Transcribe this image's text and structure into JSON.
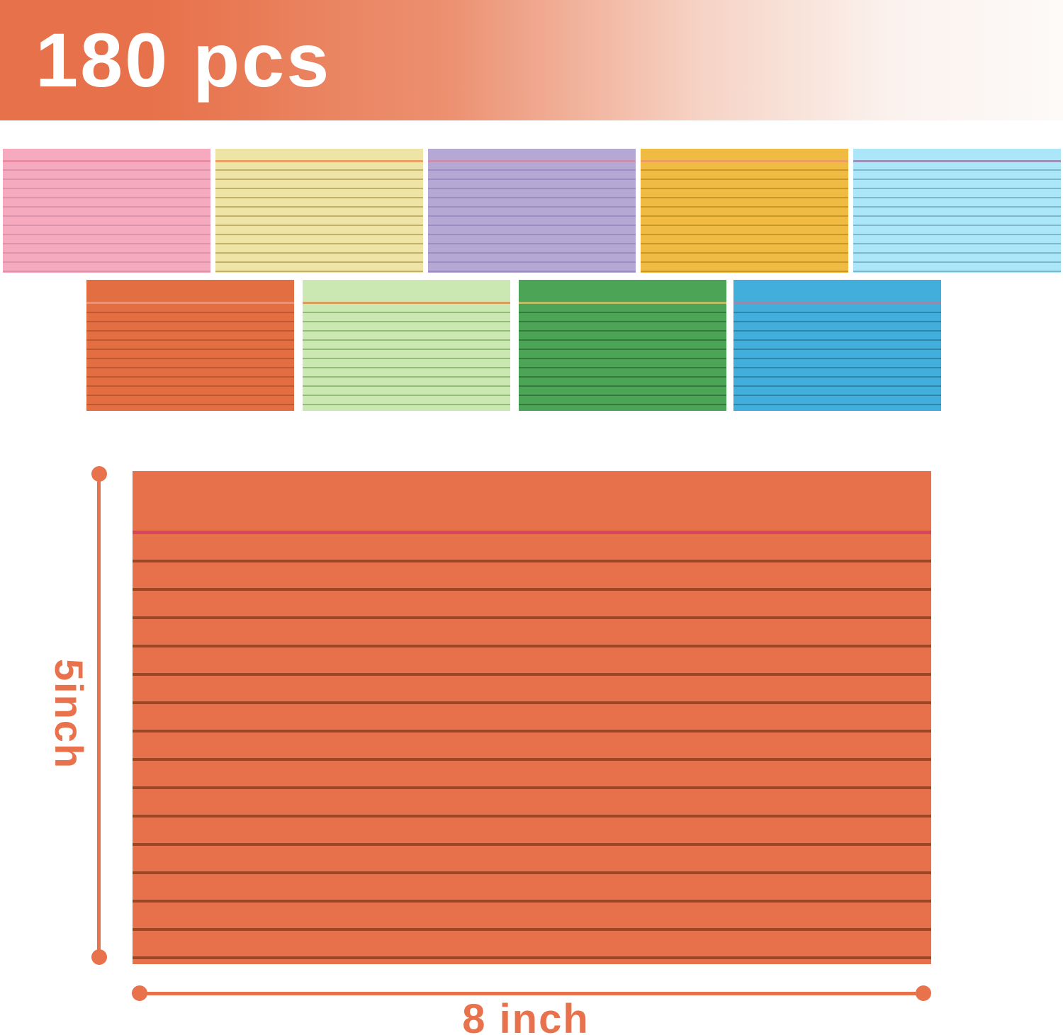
{
  "banner": {
    "title": "180 pcs",
    "bg_left": "#e7714a",
    "bg_right": "#fbf2ee",
    "text_color": "#ffffff"
  },
  "cards": {
    "row1": [
      {
        "name": "pink",
        "bg": "#f5aabf",
        "head": "#e98ca2",
        "rule": "#dc93ac"
      },
      {
        "name": "cream-yellow",
        "bg": "#ede4a5",
        "head": "#e9a164",
        "rule": "#c2b169"
      },
      {
        "name": "purple",
        "bg": "#b5a8d4",
        "head": "#c98fb1",
        "rule": "#9c8ec0"
      },
      {
        "name": "golden-yellow",
        "bg": "#efbb42",
        "head": "#ee9d60",
        "rule": "#ca9827"
      },
      {
        "name": "sky-blue",
        "bg": "#abe7f8",
        "head": "#9a92b7",
        "rule": "#7fb6cb"
      }
    ],
    "row2": [
      {
        "name": "orange",
        "bg": "#e36e41",
        "head": "#ee9071",
        "rule": "#be5831"
      },
      {
        "name": "light-green",
        "bg": "#cbe8b2",
        "head": "#dc9c59",
        "rule": "#92bc77"
      },
      {
        "name": "green",
        "bg": "#4ca457",
        "head": "#bfbb66",
        "rule": "#35793f"
      },
      {
        "name": "blue",
        "bg": "#41aedb",
        "head": "#8f8eac",
        "rule": "#2e86a9"
      }
    ]
  },
  "featured_card": {
    "name": "orange",
    "bg": "#e7714b",
    "head": "#d9455f",
    "rule": "#9b4826"
  },
  "dimensions": {
    "height_label": "5inch",
    "width_label": "8 inch",
    "accent": "#e8724c"
  }
}
